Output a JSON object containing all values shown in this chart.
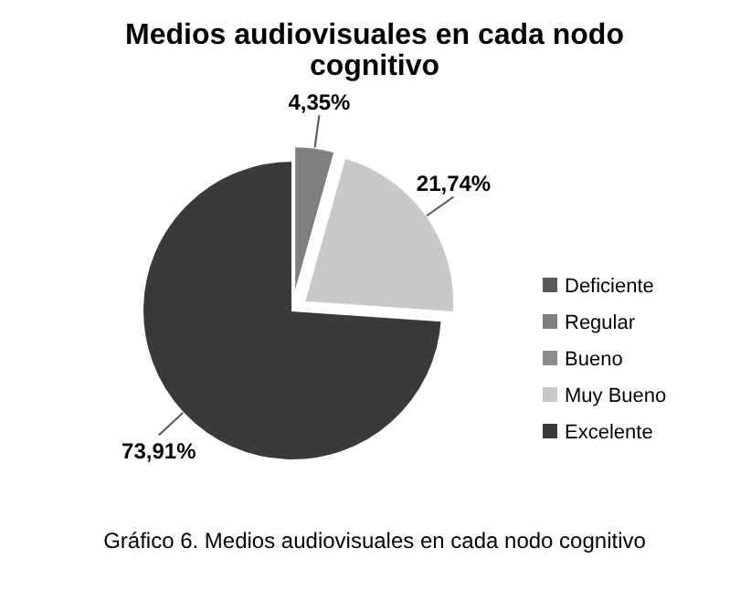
{
  "chart_data": {
    "type": "pie",
    "title": "Medios audiovisuales en cada nodo cognitivo",
    "categories": [
      "Deficiente",
      "Regular",
      "Bueno",
      "Muy Bueno",
      "Excelente"
    ],
    "values": [
      0,
      4.35,
      0,
      21.74,
      73.91
    ],
    "colors": [
      "#5a5a5a",
      "#7f7f7f",
      "#8c8c8c",
      "#c8c8c8",
      "#3a3a3a"
    ],
    "value_labels": [
      null,
      "4,35%",
      null,
      "21,74%",
      "73,91%"
    ],
    "legend": "right",
    "annotations": [
      "Gráfico 6. Medios audiovisuales en cada nodo cognitivo"
    ]
  }
}
